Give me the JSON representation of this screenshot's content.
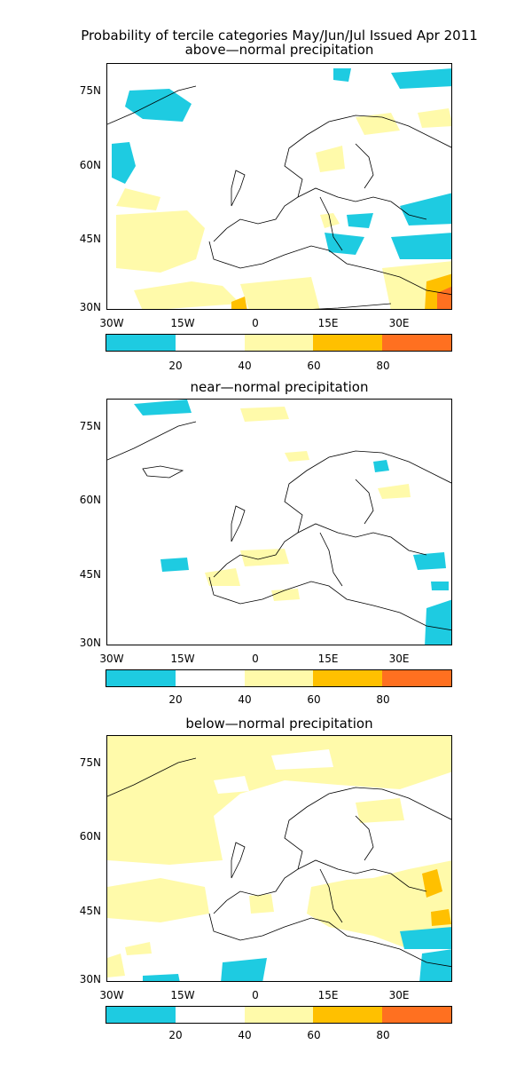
{
  "title_line": "Probability of tercile categories May/Jun/Jul Issued Apr 2011",
  "panels": [
    {
      "title": "above—normal precipitation"
    },
    {
      "title": "near—normal precipitation"
    },
    {
      "title": "below—normal precipitation"
    }
  ],
  "lat_labels": [
    "75N",
    "60N",
    "45N",
    "30N"
  ],
  "lon_labels": [
    "30W",
    "15W",
    "0",
    "15E",
    "30E"
  ],
  "colorbar": {
    "colors": [
      "#1ecbe1",
      "#ffffff",
      "#fffaaa",
      "#ffc000",
      "#ff7020"
    ],
    "labels": [
      "20",
      "40",
      "60",
      "80"
    ]
  }
}
